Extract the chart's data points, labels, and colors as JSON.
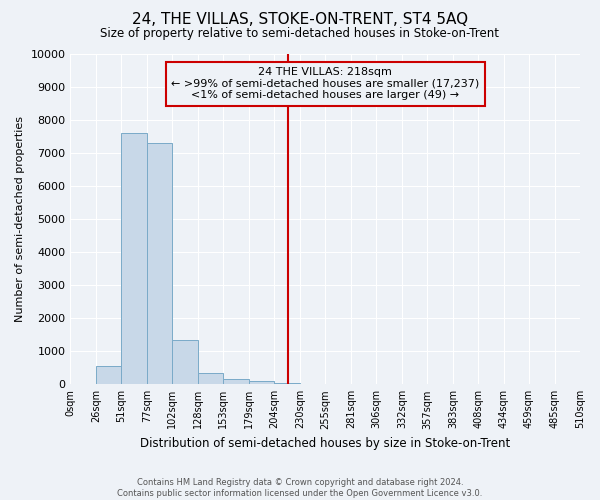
{
  "title": "24, THE VILLAS, STOKE-ON-TRENT, ST4 5AQ",
  "subtitle": "Size of property relative to semi-detached houses in Stoke-on-Trent",
  "xlabel": "Distribution of semi-detached houses by size in Stoke-on-Trent",
  "ylabel": "Number of semi-detached properties",
  "footer_line1": "Contains HM Land Registry data © Crown copyright and database right 2024.",
  "footer_line2": "Contains public sector information licensed under the Open Government Licence v3.0.",
  "bin_edges": [
    0,
    26,
    51,
    77,
    102,
    128,
    153,
    179,
    204,
    230,
    255,
    281,
    306,
    332,
    357,
    383,
    408,
    434,
    459,
    485,
    510
  ],
  "bar_heights": [
    0,
    550,
    7600,
    7300,
    1350,
    350,
    150,
    100,
    50,
    0,
    0,
    0,
    0,
    0,
    0,
    0,
    0,
    0,
    0,
    0
  ],
  "bar_color": "#c8d8e8",
  "bar_edge_color": "#7aaac8",
  "vline_x": 218,
  "vline_color": "#cc0000",
  "ylim": [
    0,
    10000
  ],
  "yticks": [
    0,
    1000,
    2000,
    3000,
    4000,
    5000,
    6000,
    7000,
    8000,
    9000,
    10000
  ],
  "annotation_title": "24 THE VILLAS: 218sqm",
  "annotation_line1": "← >99% of semi-detached houses are smaller (17,237)",
  "annotation_line2": "<1% of semi-detached houses are larger (49) →",
  "annotation_box_color": "#cc0000",
  "background_color": "#eef2f7",
  "grid_color": "#ffffff"
}
